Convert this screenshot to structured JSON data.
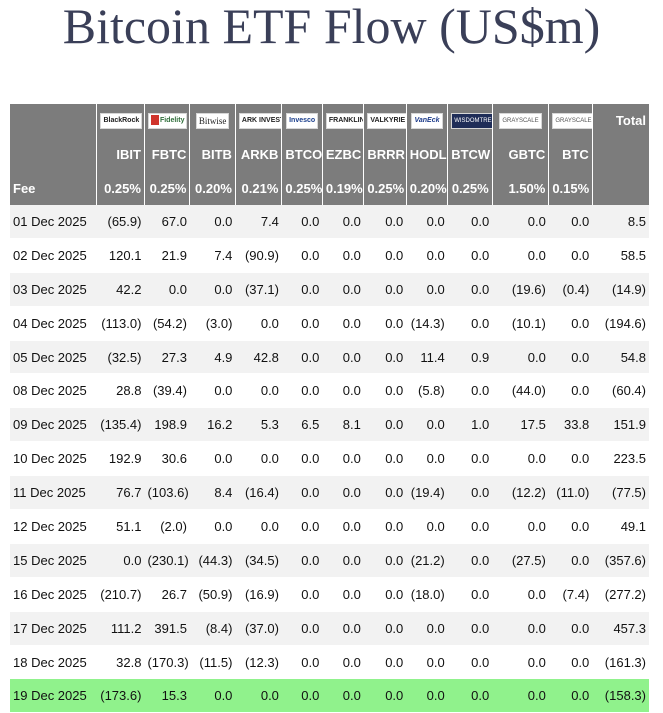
{
  "title": "Bitcoin ETF Flow (US$m)",
  "table": {
    "logos": [
      {
        "text": "BlackRock",
        "icon": "blackrock-logo-icon"
      },
      {
        "text": "Fidelity",
        "icon": "fidelity-logo-icon"
      },
      {
        "text": "Bitwise",
        "icon": "bitwise-logo-icon"
      },
      {
        "text": "ARK INVEST",
        "icon": "ark-logo-icon"
      },
      {
        "text": "Invesco",
        "icon": "invesco-logo-icon"
      },
      {
        "text": "FRANKLIN TEMPLETON",
        "icon": "franklin-logo-icon"
      },
      {
        "text": "VALKYRIE",
        "icon": "valkyrie-logo-icon"
      },
      {
        "text": "VanEck",
        "icon": "vaneck-logo-icon"
      },
      {
        "text": "WISDOMTREE",
        "icon": "wisdomtree-logo-icon"
      },
      {
        "text": "GRAYSCALE",
        "icon": "grayscale-logo-icon"
      },
      {
        "text": "GRAYSCALE",
        "icon": "grayscale-logo-icon"
      }
    ],
    "total_label": "Total",
    "tickers": [
      "IBIT",
      "FBTC",
      "BITB",
      "ARKB",
      "BTCO",
      "EZBC",
      "BRRR",
      "HODL",
      "BTCW",
      "GBTC",
      "BTC"
    ],
    "fee_label": "Fee",
    "fees": [
      "0.25%",
      "0.25%",
      "0.20%",
      "0.21%",
      "0.25%",
      "0.19%",
      "0.25%",
      "0.20%",
      "0.25%",
      "1.50%",
      "0.15%"
    ],
    "rows": [
      {
        "date": "01 Dec 2025",
        "values": [
          "(65.9)",
          "67.0",
          "0.0",
          "7.4",
          "0.0",
          "0.0",
          "0.0",
          "0.0",
          "0.0",
          "0.0",
          "0.0"
        ],
        "total": "8.5"
      },
      {
        "date": "02 Dec 2025",
        "values": [
          "120.1",
          "21.9",
          "7.4",
          "(90.9)",
          "0.0",
          "0.0",
          "0.0",
          "0.0",
          "0.0",
          "0.0",
          "0.0"
        ],
        "total": "58.5"
      },
      {
        "date": "03 Dec 2025",
        "values": [
          "42.2",
          "0.0",
          "0.0",
          "(37.1)",
          "0.0",
          "0.0",
          "0.0",
          "0.0",
          "0.0",
          "(19.6)",
          "(0.4)"
        ],
        "total": "(14.9)"
      },
      {
        "date": "04 Dec 2025",
        "values": [
          "(113.0)",
          "(54.2)",
          "(3.0)",
          "0.0",
          "0.0",
          "0.0",
          "0.0",
          "(14.3)",
          "0.0",
          "(10.1)",
          "0.0"
        ],
        "total": "(194.6)"
      },
      {
        "date": "05 Dec 2025",
        "values": [
          "(32.5)",
          "27.3",
          "4.9",
          "42.8",
          "0.0",
          "0.0",
          "0.0",
          "11.4",
          "0.9",
          "0.0",
          "0.0"
        ],
        "total": "54.8"
      },
      {
        "date": "08 Dec 2025",
        "values": [
          "28.8",
          "(39.4)",
          "0.0",
          "0.0",
          "0.0",
          "0.0",
          "0.0",
          "(5.8)",
          "0.0",
          "(44.0)",
          "0.0"
        ],
        "total": "(60.4)"
      },
      {
        "date": "09 Dec 2025",
        "values": [
          "(135.4)",
          "198.9",
          "16.2",
          "5.3",
          "6.5",
          "8.1",
          "0.0",
          "0.0",
          "1.0",
          "17.5",
          "33.8"
        ],
        "total": "151.9"
      },
      {
        "date": "10 Dec 2025",
        "values": [
          "192.9",
          "30.6",
          "0.0",
          "0.0",
          "0.0",
          "0.0",
          "0.0",
          "0.0",
          "0.0",
          "0.0",
          "0.0"
        ],
        "total": "223.5"
      },
      {
        "date": "11 Dec 2025",
        "values": [
          "76.7",
          "(103.6)",
          "8.4",
          "(16.4)",
          "0.0",
          "0.0",
          "0.0",
          "(19.4)",
          "0.0",
          "(12.2)",
          "(11.0)"
        ],
        "total": "(77.5)"
      },
      {
        "date": "12 Dec 2025",
        "values": [
          "51.1",
          "(2.0)",
          "0.0",
          "0.0",
          "0.0",
          "0.0",
          "0.0",
          "0.0",
          "0.0",
          "0.0",
          "0.0"
        ],
        "total": "49.1"
      },
      {
        "date": "15 Dec 2025",
        "values": [
          "0.0",
          "(230.1)",
          "(44.3)",
          "(34.5)",
          "0.0",
          "0.0",
          "0.0",
          "(21.2)",
          "0.0",
          "(27.5)",
          "0.0"
        ],
        "total": "(357.6)"
      },
      {
        "date": "16 Dec 2025",
        "values": [
          "(210.7)",
          "26.7",
          "(50.9)",
          "(16.9)",
          "0.0",
          "0.0",
          "0.0",
          "(18.0)",
          "0.0",
          "0.0",
          "(7.4)"
        ],
        "total": "(277.2)"
      },
      {
        "date": "17 Dec 2025",
        "values": [
          "111.2",
          "391.5",
          "(8.4)",
          "(37.0)",
          "0.0",
          "0.0",
          "0.0",
          "0.0",
          "0.0",
          "0.0",
          "0.0"
        ],
        "total": "457.3"
      },
      {
        "date": "18 Dec 2025",
        "values": [
          "32.8",
          "(170.3)",
          "(11.5)",
          "(12.3)",
          "0.0",
          "0.0",
          "0.0",
          "0.0",
          "0.0",
          "0.0",
          "0.0"
        ],
        "total": "(161.3)"
      },
      {
        "date": "19 Dec 2025",
        "values": [
          "(173.6)",
          "15.3",
          "0.0",
          "0.0",
          "0.0",
          "0.0",
          "0.0",
          "0.0",
          "0.0",
          "0.0",
          "0.0"
        ],
        "total": "(158.3)",
        "highlight": true
      }
    ],
    "colors": {
      "header_bg": "#7c7c7c",
      "negative": "#cc1111",
      "row_alt": "#f2f2f2",
      "highlight": "#90f28c",
      "title": "#3a3f58"
    }
  }
}
